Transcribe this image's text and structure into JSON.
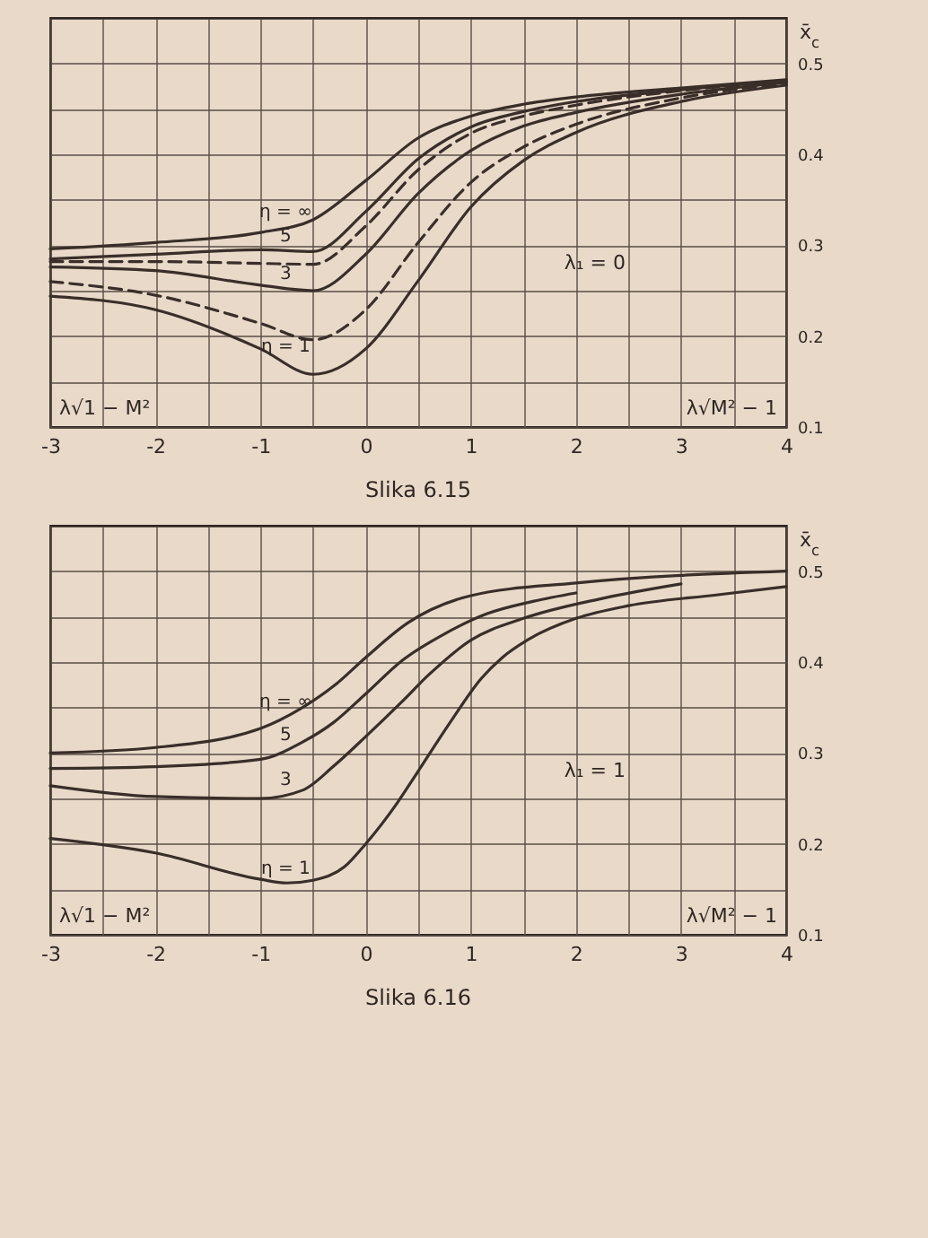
{
  "chart_data": [
    {
      "type": "line",
      "ylabel": "x̄$_{c}$",
      "x": [
        -3,
        -2,
        -1,
        -0.5,
        0,
        0.5,
        1,
        1.5,
        2,
        3,
        4
      ],
      "series": [
        {
          "name": "η = ∞",
          "color": "#3a2e29",
          "values": [
            0.296,
            0.303,
            0.314,
            0.328,
            0.371,
            0.418,
            0.442,
            0.455,
            0.463,
            0.473,
            0.482
          ]
        },
        {
          "name": "5",
          "color": "#3a2e29",
          "values": [
            0.285,
            0.29,
            0.295,
            0.293,
            0.337,
            0.395,
            0.43,
            0.447,
            0.458,
            0.471,
            0.481
          ]
        },
        {
          "color": "#3a2e29",
          "line_style": "dashed",
          "values": [
            0.282,
            0.282,
            0.28,
            0.279,
            0.321,
            0.383,
            0.423,
            0.442,
            0.454,
            0.47,
            0.48
          ]
        },
        {
          "name": "3",
          "color": "#3a2e29",
          "values": [
            0.276,
            0.272,
            0.256,
            0.25,
            0.29,
            0.357,
            0.404,
            0.431,
            0.446,
            0.466,
            0.479
          ]
        },
        {
          "color": "#3a2e29",
          "line_style": "dashed",
          "values": [
            0.26,
            0.245,
            0.214,
            0.196,
            0.229,
            0.303,
            0.369,
            0.408,
            0.433,
            0.462,
            0.478
          ]
        },
        {
          "name": "η = 1",
          "color": "#3a2e29",
          "values": [
            0.244,
            0.229,
            0.186,
            0.158,
            0.186,
            0.261,
            0.342,
            0.393,
            0.424,
            0.458,
            0.476
          ]
        }
      ],
      "xlim": [
        -3,
        4
      ],
      "ylim": [
        0.1,
        0.55
      ],
      "xticks": [
        -3,
        {
          "value": -2.5,
          "label": null
        },
        -2,
        {
          "value": -1.5,
          "label": null
        },
        -1,
        {
          "value": -0.5,
          "label": null
        },
        0,
        {
          "value": 0.5,
          "label": null
        },
        1,
        {
          "value": 1.5,
          "label": null
        },
        2,
        {
          "value": 2.5,
          "label": null
        },
        3,
        {
          "value": 3.5,
          "label": null
        },
        4
      ],
      "yticks": [
        0.1,
        {
          "value": 0.15,
          "label": null
        },
        0.2,
        {
          "value": 0.25,
          "label": null
        },
        0.3,
        {
          "value": 0.35,
          "label": null
        },
        0.4,
        {
          "value": 0.45,
          "label": null
        },
        0.5
      ],
      "grid": true,
      "line_style": "solid",
      "annotations": [
        "λ√1 − M²",
        "λ√M² − 1",
        "λ₁ = 0",
        "Slika 6.15"
      ]
    },
    {
      "type": "line",
      "ylabel": "x̄$_{c}$",
      "series": [
        {
          "name": "η = ∞",
          "color": "#3a2e29",
          "x": [
            -3,
            -2,
            -1,
            -0.6,
            -0.3,
            0,
            0.4,
            1,
            2,
            4
          ],
          "values": [
            0.3,
            0.306,
            0.327,
            0.35,
            0.374,
            0.405,
            0.443,
            0.473,
            0.487,
            0.5
          ]
        },
        {
          "name": "5",
          "color": "#3a2e29",
          "x": [
            -3,
            -2,
            -1,
            -0.6,
            -0.3,
            0,
            0.35,
            0.75,
            1.15,
            1.6,
            2
          ],
          "values": [
            0.283,
            0.285,
            0.293,
            0.312,
            0.334,
            0.365,
            0.402,
            0.431,
            0.453,
            0.467,
            0.476
          ]
        },
        {
          "name": "3",
          "color": "#3a2e29",
          "x": [
            -3,
            -2,
            -1,
            -0.6,
            -0.3,
            0,
            0.35,
            0.6,
            1,
            1.5,
            2.25,
            3
          ],
          "values": [
            0.264,
            0.252,
            0.25,
            0.259,
            0.286,
            0.318,
            0.357,
            0.386,
            0.424,
            0.448,
            0.47,
            0.486
          ]
        },
        {
          "name": "η = 1",
          "color": "#3a2e29",
          "x": [
            -3,
            -2,
            -1,
            -0.75,
            -0.5,
            -0.2,
            0,
            0.3,
            0.5,
            0.8,
            1.1,
            1.3,
            1.55,
            2,
            2.5,
            3.35,
            4
          ],
          "values": [
            0.206,
            0.19,
            0.161,
            0.157,
            0.16,
            0.175,
            0.2,
            0.245,
            0.28,
            0.333,
            0.382,
            0.405,
            0.425,
            0.448,
            0.462,
            0.474,
            0.483
          ]
        }
      ],
      "xlim": [
        -3,
        4
      ],
      "ylim": [
        0.1,
        0.55
      ],
      "xticks": [
        -3,
        {
          "value": -2.5,
          "label": null
        },
        -2,
        {
          "value": -1.5,
          "label": null
        },
        -1,
        {
          "value": -0.5,
          "label": null
        },
        0,
        {
          "value": 0.5,
          "label": null
        },
        1,
        {
          "value": 1.5,
          "label": null
        },
        2,
        {
          "value": 2.5,
          "label": null
        },
        3,
        {
          "value": 3.5,
          "label": null
        },
        4
      ],
      "yticks": [
        0.1,
        {
          "value": 0.15,
          "label": null
        },
        0.2,
        {
          "value": 0.25,
          "label": null
        },
        0.3,
        {
          "value": 0.35,
          "label": null
        },
        0.4,
        {
          "value": 0.45,
          "label": null
        },
        0.5
      ],
      "grid": true,
      "line_style": "solid",
      "annotations": [
        "λ√1 − M²",
        "λ√M² − 1",
        "λ₁ = 1",
        "Slika 6.16"
      ]
    }
  ]
}
